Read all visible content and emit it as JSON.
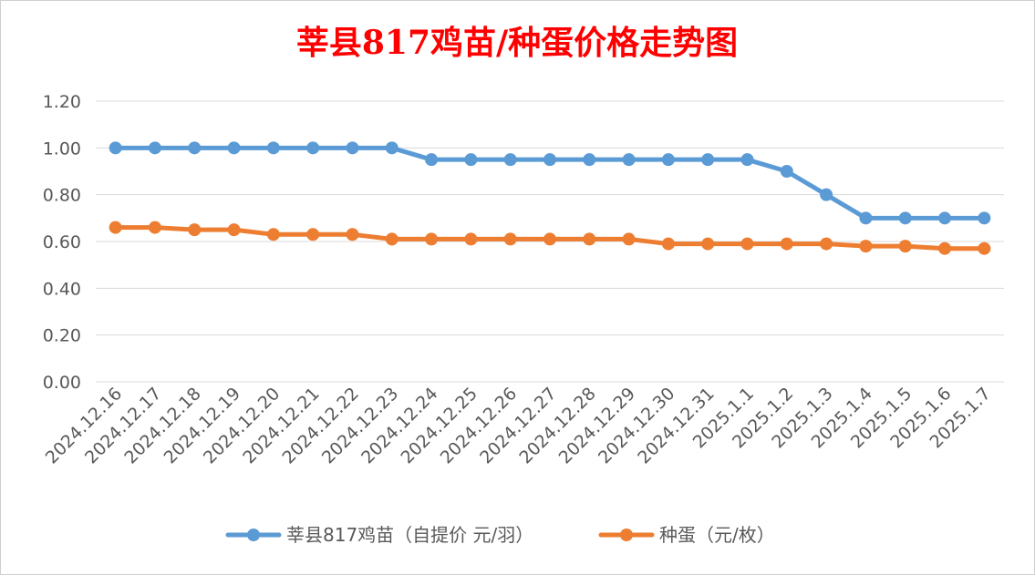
{
  "colors": {
    "title": "#ff0000",
    "grid": "#d9d9d9",
    "axis_text": "#595959",
    "series_chick": "#5b9bd5",
    "series_egg": "#ed7d31"
  },
  "chart_data": {
    "type": "line",
    "title": "莘县817鸡苗/种蛋价格走势图",
    "xlabel": "",
    "ylabel": "",
    "ylim": [
      0,
      1.2
    ],
    "yticks": [
      "0.00",
      "0.20",
      "0.40",
      "0.60",
      "0.80",
      "1.00",
      "1.20"
    ],
    "grid": true,
    "legend_position": "bottom",
    "categories": [
      "2024.12.16",
      "2024.12.17",
      "2024.12.18",
      "2024.12.19",
      "2024.12.20",
      "2024.12.21",
      "2024.12.22",
      "2024.12.23",
      "2024.12.24",
      "2024.12.25",
      "2024.12.26",
      "2024.12.27",
      "2024.12.28",
      "2024.12.29",
      "2024.12.30",
      "2024.12.31",
      "2025.1.1",
      "2025.1.2",
      "2025.1.3",
      "2025.1.4",
      "2025.1.5",
      "2025.1.6",
      "2025.1.7"
    ],
    "series": [
      {
        "name": "莘县817鸡苗（自提价 元/羽）",
        "color": "#5b9bd5",
        "values": [
          1.0,
          1.0,
          1.0,
          1.0,
          1.0,
          1.0,
          1.0,
          1.0,
          0.95,
          0.95,
          0.95,
          0.95,
          0.95,
          0.95,
          0.95,
          0.95,
          0.95,
          0.9,
          0.8,
          0.7,
          0.7,
          0.7,
          0.7
        ]
      },
      {
        "name": "种蛋（元/枚）",
        "color": "#ed7d31",
        "values": [
          0.66,
          0.66,
          0.65,
          0.65,
          0.63,
          0.63,
          0.63,
          0.61,
          0.61,
          0.61,
          0.61,
          0.61,
          0.61,
          0.61,
          0.59,
          0.59,
          0.59,
          0.59,
          0.59,
          0.58,
          0.58,
          0.57,
          0.57
        ]
      }
    ]
  }
}
